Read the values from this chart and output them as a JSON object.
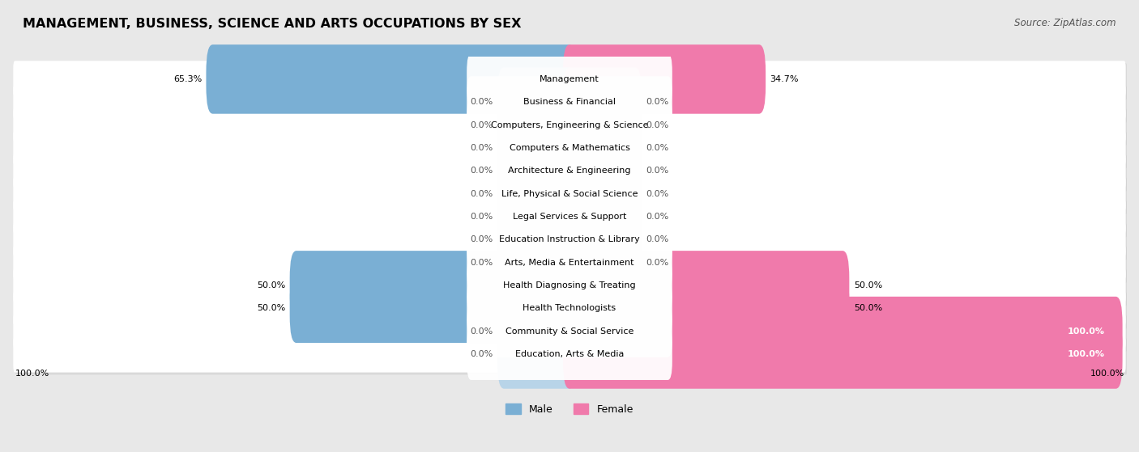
{
  "title": "MANAGEMENT, BUSINESS, SCIENCE AND ARTS OCCUPATIONS BY SEX",
  "source": "Source: ZipAtlas.com",
  "categories": [
    "Management",
    "Business & Financial",
    "Computers, Engineering & Science",
    "Computers & Mathematics",
    "Architecture & Engineering",
    "Life, Physical & Social Science",
    "Legal Services & Support",
    "Education Instruction & Library",
    "Arts, Media & Entertainment",
    "Health Diagnosing & Treating",
    "Health Technologists",
    "Community & Social Service",
    "Education, Arts & Media"
  ],
  "male_values": [
    65.3,
    0.0,
    0.0,
    0.0,
    0.0,
    0.0,
    0.0,
    0.0,
    0.0,
    50.0,
    50.0,
    0.0,
    0.0
  ],
  "female_values": [
    34.7,
    0.0,
    0.0,
    0.0,
    0.0,
    0.0,
    0.0,
    0.0,
    0.0,
    50.0,
    50.0,
    100.0,
    100.0
  ],
  "male_color": "#7aafd4",
  "male_color_light": "#b8d4e8",
  "female_color": "#f07aab",
  "female_color_light": "#f5b8d4",
  "male_label": "Male",
  "female_label": "Female",
  "bg_color": "#e8e8e8",
  "row_bg_color": "#ffffff",
  "max_value": 100.0,
  "stub_size": 12.0,
  "title_fontsize": 11.5,
  "source_fontsize": 8.5,
  "label_fontsize": 8.0,
  "category_fontsize": 8.0
}
